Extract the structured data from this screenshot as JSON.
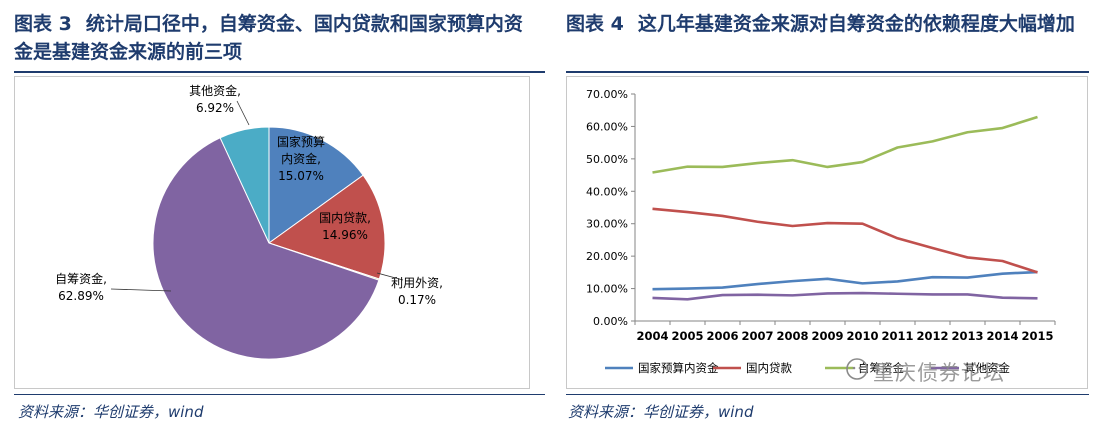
{
  "left": {
    "title_num": "图表 3",
    "title_text": "统计局口径中，自筹资金、国内贷款和国家预算内资金是基建资金来源的前三项",
    "source": "资料来源：华创证券，wind",
    "chart_data": {
      "type": "pie",
      "slices": [
        {
          "label": "国家预算内资金",
          "value": 15.07,
          "pct": "15.07%",
          "color": "#4f81bd"
        },
        {
          "label": "国内贷款",
          "value": 14.96,
          "pct": "14.96%",
          "color": "#c0504d"
        },
        {
          "label": "利用外资",
          "value": 0.17,
          "pct": "0.17%",
          "color": "#9bbb59"
        },
        {
          "label": "自筹资金",
          "value": 62.89,
          "pct": "62.89%",
          "color": "#8064a2"
        },
        {
          "label": "其他资金",
          "value": 6.92,
          "pct": "6.92%",
          "color": "#4bacc6"
        }
      ]
    }
  },
  "right": {
    "title_num": "图表 4",
    "title_text": "这几年基建资金来源对自筹资金的依赖程度大幅增加",
    "source": "资料来源：华创证券，wind",
    "watermark": "重庆债券论坛",
    "chart_data": {
      "type": "line",
      "x": [
        "2004",
        "2005",
        "2006",
        "2007",
        "2008",
        "2009",
        "2010",
        "2011",
        "2012",
        "2013",
        "2014",
        "2015"
      ],
      "ylim": [
        0,
        70
      ],
      "yticks": [
        "0.00%",
        "10.00%",
        "20.00%",
        "30.00%",
        "40.00%",
        "50.00%",
        "60.00%",
        "70.00%"
      ],
      "legend_position": "bottom",
      "series": [
        {
          "name": "国家预算内资金",
          "color": "#4f81bd",
          "values": [
            9.8,
            10.0,
            10.3,
            11.4,
            12.3,
            13.0,
            11.6,
            12.2,
            13.5,
            13.4,
            14.6,
            15.1
          ]
        },
        {
          "name": "国内贷款",
          "color": "#c0504d",
          "values": [
            34.6,
            33.6,
            32.4,
            30.6,
            29.3,
            30.2,
            30.0,
            25.5,
            22.5,
            19.6,
            18.5,
            15.0
          ]
        },
        {
          "name": "自筹资金",
          "color": "#9bbb59",
          "values": [
            45.8,
            47.6,
            47.5,
            48.7,
            49.6,
            47.5,
            49.0,
            53.5,
            55.4,
            58.2,
            59.5,
            62.9
          ]
        },
        {
          "name": "其他资金",
          "color": "#8064a2",
          "values": [
            7.1,
            6.7,
            8.0,
            8.1,
            7.9,
            8.5,
            8.6,
            8.4,
            8.2,
            8.2,
            7.2,
            7.0
          ]
        }
      ]
    }
  }
}
